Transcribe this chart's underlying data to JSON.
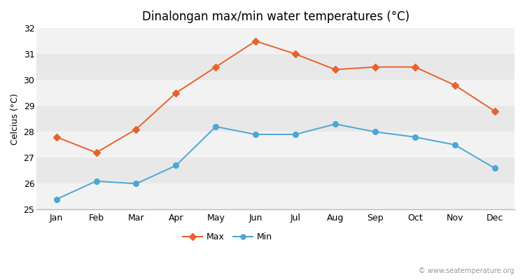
{
  "months": [
    "Jan",
    "Feb",
    "Mar",
    "Apr",
    "May",
    "Jun",
    "Jul",
    "Aug",
    "Sep",
    "Oct",
    "Nov",
    "Dec"
  ],
  "max_temps": [
    27.8,
    27.2,
    28.1,
    29.5,
    30.5,
    31.5,
    31.0,
    30.4,
    30.5,
    30.5,
    29.8,
    28.8
  ],
  "min_temps": [
    25.4,
    26.1,
    26.0,
    26.7,
    28.2,
    27.9,
    27.9,
    28.3,
    28.0,
    27.8,
    27.5,
    26.6
  ],
  "max_color": "#e8622a",
  "min_color": "#4da6d4",
  "bg_color": "#ffffff",
  "plot_bg_color": "#e8e8e8",
  "band_color_light": "#f2f2f2",
  "title": "Dinalongan max/min water temperatures (°C)",
  "ylabel": "Celcius (°C)",
  "ylim": [
    25,
    32
  ],
  "yticks": [
    25,
    26,
    27,
    28,
    29,
    30,
    31,
    32
  ],
  "title_fontsize": 12,
  "axis_fontsize": 9,
  "tick_fontsize": 9,
  "watermark": "© www.seatemperature.org",
  "legend_max": "Max",
  "legend_min": "Min"
}
